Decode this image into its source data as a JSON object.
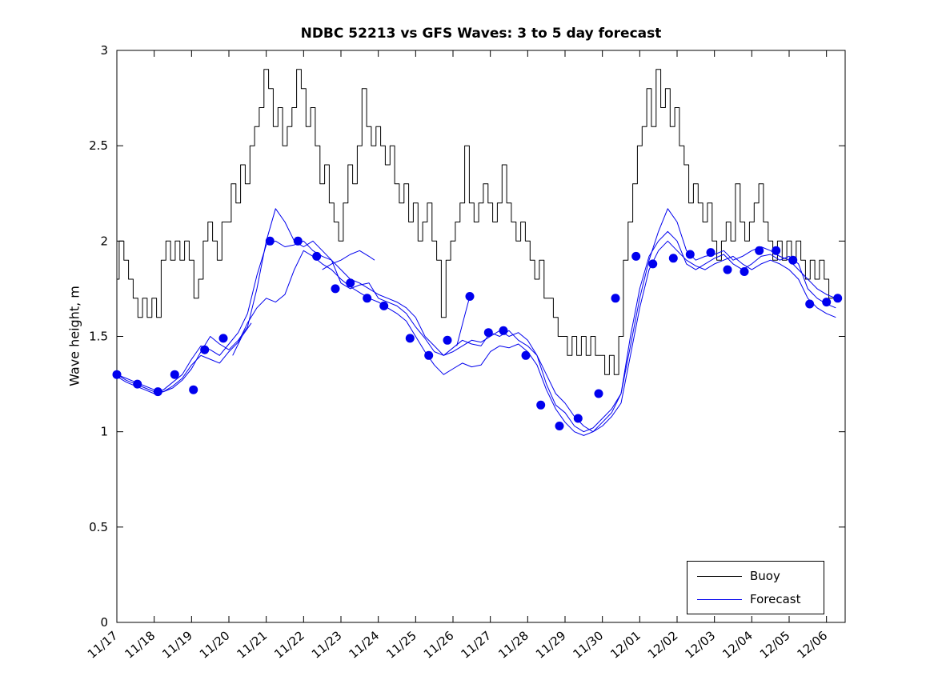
{
  "chart_data": {
    "type": "line",
    "title": "NDBC 52213 vs GFS Waves: 3 to 5 day forecast",
    "ylabel": "Wave height, m",
    "xlabel": "",
    "grid": false,
    "ylim": [
      0,
      3
    ],
    "ytick_values": [
      0,
      0.5,
      1,
      1.5,
      2,
      2.5,
      3
    ],
    "ytick_labels": [
      "0",
      "0.5",
      "1",
      "1.5",
      "2",
      "2.5",
      "3"
    ],
    "xlim_days": [
      0,
      19.5
    ],
    "xtick_days": [
      0,
      1,
      2,
      3,
      4,
      5,
      6,
      7,
      8,
      9,
      10,
      11,
      12,
      13,
      14,
      15,
      16,
      17,
      18,
      19
    ],
    "xtick_labels": [
      "11/17",
      "11/18",
      "11/19",
      "11/20",
      "11/21",
      "11/22",
      "11/23",
      "11/24",
      "11/25",
      "11/26",
      "11/27",
      "11/28",
      "11/29",
      "11/30",
      "12/01",
      "12/02",
      "12/03",
      "12/04",
      "12/05",
      "12/06"
    ],
    "xtick_angle": -40,
    "colors": {
      "buoy": "#000000",
      "forecast": "#0000ee"
    },
    "legend": {
      "position": "lower right",
      "entries": [
        {
          "label": "Buoy",
          "color": "#000000"
        },
        {
          "label": "Forecast",
          "color": "#0000ee"
        }
      ]
    },
    "series": [
      {
        "name": "Buoy observations",
        "color": "#000000",
        "width": 1,
        "step": true,
        "x_start": 0,
        "x_step": 0.125,
        "y": [
          1.8,
          2.0,
          1.9,
          1.8,
          1.7,
          1.6,
          1.7,
          1.6,
          1.7,
          1.6,
          1.9,
          2.0,
          1.9,
          2.0,
          1.9,
          2.0,
          1.9,
          1.7,
          1.8,
          2.0,
          2.1,
          2.0,
          1.9,
          2.1,
          2.1,
          2.3,
          2.2,
          2.4,
          2.3,
          2.5,
          2.6,
          2.7,
          2.9,
          2.8,
          2.6,
          2.7,
          2.5,
          2.6,
          2.7,
          2.9,
          2.8,
          2.6,
          2.7,
          2.5,
          2.3,
          2.4,
          2.2,
          2.1,
          2.0,
          2.2,
          2.4,
          2.3,
          2.5,
          2.8,
          2.6,
          2.5,
          2.6,
          2.5,
          2.4,
          2.5,
          2.3,
          2.2,
          2.3,
          2.1,
          2.2,
          2.0,
          2.1,
          2.2,
          2.0,
          1.9,
          1.6,
          1.9,
          2.0,
          2.1,
          2.2,
          2.5,
          2.2,
          2.1,
          2.2,
          2.3,
          2.2,
          2.1,
          2.2,
          2.4,
          2.2,
          2.1,
          2.0,
          2.1,
          2.0,
          1.9,
          1.8,
          1.9,
          1.7,
          1.7,
          1.6,
          1.5,
          1.5,
          1.4,
          1.5,
          1.4,
          1.5,
          1.4,
          1.5,
          1.4,
          1.4,
          1.3,
          1.4,
          1.3,
          1.5,
          1.9,
          2.1,
          2.3,
          2.5,
          2.6,
          2.8,
          2.6,
          2.9,
          2.7,
          2.8,
          2.6,
          2.7,
          2.5,
          2.4,
          2.2,
          2.3,
          2.2,
          2.1,
          2.2,
          2.0,
          1.9,
          2.0,
          2.1,
          2.0,
          2.3,
          2.1,
          2.0,
          2.1,
          2.2,
          2.3,
          2.1,
          2.0,
          1.9,
          2.0,
          1.9,
          2.0,
          1.9,
          2.0,
          1.9,
          1.8,
          1.9,
          1.8,
          1.9,
          1.8,
          1.7,
          1.7
        ]
      },
      {
        "name": "Forecast run 1",
        "color": "#0000ee",
        "width": 1,
        "step": false,
        "x_start": 0,
        "x_step": 0.25,
        "y": [
          1.3,
          1.28,
          1.26,
          1.24,
          1.22,
          1.21,
          1.23,
          1.27,
          1.33,
          1.42,
          1.5,
          1.46,
          1.43,
          1.48,
          1.55,
          1.75,
          2.0,
          2.17,
          2.1,
          2.0,
          1.97,
          2.0,
          1.95,
          1.9,
          1.85,
          1.8,
          1.78,
          1.75,
          1.72,
          1.7,
          1.68,
          1.65,
          1.6,
          1.5,
          1.45,
          1.4,
          1.42,
          1.45,
          1.48,
          1.47,
          1.5,
          1.53,
          1.5,
          1.52,
          1.48,
          1.4,
          1.3,
          1.2,
          1.15,
          1.08,
          1.03,
          1.0,
          1.05,
          1.1,
          1.2,
          1.45,
          1.7,
          1.9,
          2.05,
          2.17,
          2.1,
          1.95,
          1.9,
          1.92,
          1.93,
          1.95,
          1.9,
          1.92,
          1.95,
          1.97,
          1.95,
          1.92,
          1.9,
          1.85,
          1.8,
          1.75,
          1.72,
          1.7
        ]
      },
      {
        "name": "Forecast run 2",
        "color": "#0000ee",
        "width": 1,
        "step": false,
        "x_start": 0,
        "x_step": 0.25,
        "y": [
          1.3,
          1.27,
          1.25,
          1.23,
          1.21,
          1.22,
          1.26,
          1.3,
          1.38,
          1.45,
          1.43,
          1.4,
          1.46,
          1.52,
          1.62,
          1.82,
          1.98,
          2.0,
          1.97,
          1.98,
          2.0,
          1.95,
          1.92,
          1.9,
          1.78,
          1.75,
          1.77,
          1.78,
          1.7,
          1.68,
          1.66,
          1.62,
          1.55,
          1.49,
          1.42,
          1.4,
          1.44,
          1.48,
          1.46,
          1.45,
          1.52,
          1.5,
          1.53,
          1.48,
          1.45,
          1.4,
          1.25,
          1.14,
          1.1,
          1.03,
          1.0,
          1.02,
          1.07,
          1.12,
          1.2,
          1.5,
          1.75,
          1.92,
          2.0,
          2.05,
          2.0,
          1.88,
          1.85,
          1.88,
          1.91,
          1.93,
          1.88,
          1.85,
          1.88,
          1.92,
          1.93,
          1.9,
          1.92,
          1.88,
          1.75,
          1.7,
          1.67,
          1.65
        ]
      },
      {
        "name": "Forecast run 3",
        "color": "#0000ee",
        "width": 1,
        "step": false,
        "x_start": 0,
        "x_step": 0.25,
        "y": [
          1.29,
          1.26,
          1.24,
          1.22,
          1.2,
          1.21,
          1.24,
          1.28,
          1.35,
          1.4,
          1.38,
          1.36,
          1.42,
          1.47,
          1.57,
          1.65,
          1.7,
          1.68,
          1.72,
          1.85,
          1.95,
          1.92,
          1.88,
          1.85,
          1.8,
          1.76,
          1.73,
          1.7,
          1.68,
          1.65,
          1.62,
          1.58,
          1.5,
          1.42,
          1.35,
          1.3,
          1.33,
          1.36,
          1.34,
          1.35,
          1.42,
          1.45,
          1.44,
          1.46,
          1.42,
          1.35,
          1.22,
          1.12,
          1.05,
          1.0,
          0.98,
          1.0,
          1.03,
          1.08,
          1.15,
          1.4,
          1.65,
          1.85,
          1.95,
          2.0,
          1.95,
          1.9,
          1.87,
          1.85,
          1.88,
          1.9,
          1.92,
          1.88,
          1.85,
          1.88,
          1.9,
          1.88,
          1.85,
          1.8,
          1.7,
          1.65,
          1.62,
          1.6
        ]
      },
      {
        "name": "Forecast segment a",
        "color": "#0000ee",
        "width": 1,
        "step": false,
        "x": [
          5.5,
          5.75,
          6.0,
          6.25,
          6.5,
          6.75,
          6.9
        ],
        "y": [
          1.85,
          1.88,
          1.9,
          1.93,
          1.95,
          1.92,
          1.9
        ]
      },
      {
        "name": "Forecast segment b",
        "color": "#0000ee",
        "width": 1,
        "step": false,
        "x": [
          9.1,
          9.3,
          9.45
        ],
        "y": [
          1.45,
          1.6,
          1.71
        ]
      },
      {
        "name": "Forecast segment c",
        "color": "#0000ee",
        "width": 1,
        "step": false,
        "x": [
          3.1,
          3.35,
          3.6
        ],
        "y": [
          1.4,
          1.5,
          1.57
        ]
      }
    ],
    "markers": {
      "name": "Forecast verification markers",
      "color": "#0000ee",
      "size": 5.5,
      "points": [
        [
          0.0,
          1.3
        ],
        [
          0.55,
          1.25
        ],
        [
          1.1,
          1.21
        ],
        [
          1.55,
          1.3
        ],
        [
          2.05,
          1.22
        ],
        [
          2.35,
          1.43
        ],
        [
          2.85,
          1.49
        ],
        [
          4.1,
          2.0
        ],
        [
          4.85,
          2.0
        ],
        [
          5.35,
          1.92
        ],
        [
          5.85,
          1.75
        ],
        [
          6.25,
          1.78
        ],
        [
          6.7,
          1.7
        ],
        [
          7.15,
          1.66
        ],
        [
          7.85,
          1.49
        ],
        [
          8.35,
          1.4
        ],
        [
          8.85,
          1.48
        ],
        [
          9.45,
          1.71
        ],
        [
          9.95,
          1.52
        ],
        [
          10.35,
          1.53
        ],
        [
          10.95,
          1.4
        ],
        [
          11.35,
          1.14
        ],
        [
          11.85,
          1.03
        ],
        [
          12.35,
          1.07
        ],
        [
          12.9,
          1.2
        ],
        [
          13.35,
          1.7
        ],
        [
          13.9,
          1.92
        ],
        [
          14.35,
          1.88
        ],
        [
          14.9,
          1.91
        ],
        [
          15.35,
          1.93
        ],
        [
          15.9,
          1.94
        ],
        [
          16.35,
          1.85
        ],
        [
          16.8,
          1.84
        ],
        [
          17.2,
          1.95
        ],
        [
          17.65,
          1.95
        ],
        [
          18.1,
          1.9
        ],
        [
          18.55,
          1.67
        ],
        [
          19.0,
          1.68
        ],
        [
          19.3,
          1.7
        ]
      ]
    }
  }
}
